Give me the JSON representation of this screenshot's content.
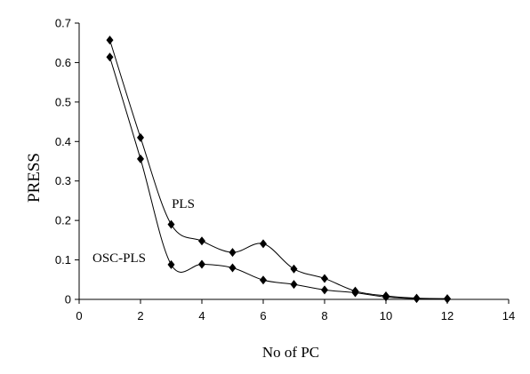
{
  "chart_data": {
    "type": "line",
    "title": "",
    "xlabel": "No of PC",
    "ylabel": "PRESS",
    "xlim": [
      0,
      14
    ],
    "ylim": [
      0,
      0.7
    ],
    "x_ticks": [
      "0",
      "2",
      "4",
      "6",
      "8",
      "10",
      "12",
      "14"
    ],
    "y_ticks": [
      "0",
      "0.1",
      "0.2",
      "0.3",
      "0.4",
      "0.5",
      "0.6",
      "0.7"
    ],
    "grid": false,
    "legend": "none",
    "marker": "diamond",
    "line_color": "#000000",
    "series": [
      {
        "name": "PLS",
        "x": [
          1,
          2,
          3,
          4,
          5,
          6,
          7,
          8,
          9,
          10,
          11,
          12
        ],
        "values": [
          0.657,
          0.41,
          0.19,
          0.148,
          0.119,
          0.141,
          0.077,
          0.053,
          0.021,
          0.009,
          0.003,
          0.002
        ]
      },
      {
        "name": "OSC-PLS",
        "x": [
          1,
          2,
          3,
          4,
          5,
          6,
          7,
          8,
          9,
          10,
          11,
          12
        ],
        "values": [
          0.614,
          0.356,
          0.088,
          0.089,
          0.08,
          0.049,
          0.038,
          0.024,
          0.017,
          0.006,
          0.002,
          0.001
        ]
      }
    ]
  }
}
